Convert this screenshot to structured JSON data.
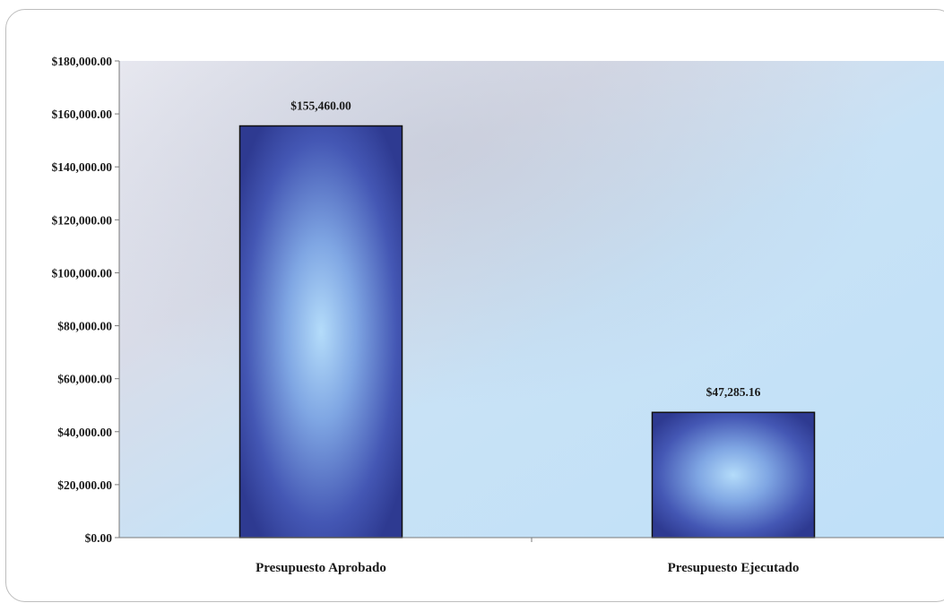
{
  "chart_data": {
    "type": "bar",
    "categories": [
      "Presupuesto Aprobado",
      "Presupuesto Ejecutado"
    ],
    "values": [
      155460.0,
      47285.16
    ],
    "data_labels": [
      "$155,460.00",
      "$47,285.16"
    ],
    "y_ticks": [
      {
        "value": 0,
        "label": "$0.00"
      },
      {
        "value": 20000,
        "label": "$20,000.00"
      },
      {
        "value": 40000,
        "label": "$40,000.00"
      },
      {
        "value": 60000,
        "label": "$60,000.00"
      },
      {
        "value": 80000,
        "label": "$80,000.00"
      },
      {
        "value": 100000,
        "label": "$100,000.00"
      },
      {
        "value": 120000,
        "label": "$120,000.00"
      },
      {
        "value": 140000,
        "label": "$140,000.00"
      },
      {
        "value": 160000,
        "label": "$160,000.00"
      },
      {
        "value": 180000,
        "label": "$180,000.00"
      }
    ],
    "ylim": [
      0,
      180000
    ],
    "title": "",
    "xlabel": "",
    "ylabel": "",
    "grid": false,
    "legend": "none",
    "colors": {
      "bar_edge": "#2f3a8f",
      "bar_center": "#9ec8f4",
      "plot_bg_light": "#e6e6ef",
      "plot_bg_blue": "#bfe0f8"
    }
  }
}
